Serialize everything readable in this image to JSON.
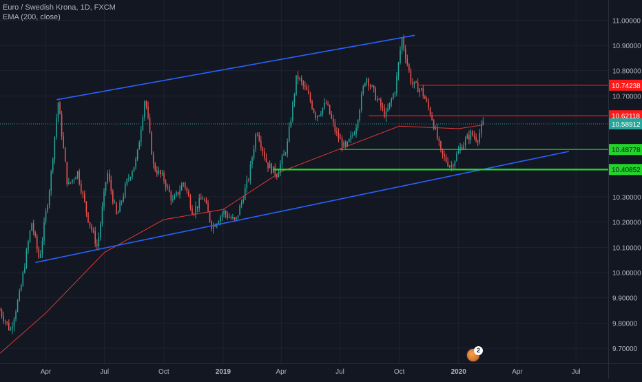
{
  "legend": {
    "symbol": "Euro / Swedish Krona, 1D, FXCM",
    "indicator": "EMA (200, close)"
  },
  "colors": {
    "background": "#131722",
    "up_candle": "#26a69a",
    "down_candle": "#ef5350",
    "trendline": "#2962ff",
    "ema": "#e53935",
    "resistance": "#ff1a1a",
    "support": "#22d32b",
    "last_price": "#26a69a",
    "axis_text": "#b2b5be"
  },
  "chart_data": {
    "type": "candlestick",
    "title": "Euro / Swedish Krona, 1D, FXCM",
    "indicator": "EMA (200, close)",
    "ylim": [
      9.64,
      11.08
    ],
    "x_range": [
      "2018-01-20",
      "2020-08-20"
    ],
    "x_ticks": [
      {
        "label": "Apr",
        "date": "2018-04-01"
      },
      {
        "label": "Jul",
        "date": "2018-07-01"
      },
      {
        "label": "Oct",
        "date": "2018-10-01"
      },
      {
        "label": "2019",
        "date": "2019-01-01"
      },
      {
        "label": "Apr",
        "date": "2019-04-01"
      },
      {
        "label": "Jul",
        "date": "2019-07-01"
      },
      {
        "label": "Oct",
        "date": "2019-10-01"
      },
      {
        "label": "2020",
        "date": "2020-01-01"
      },
      {
        "label": "Apr",
        "date": "2020-04-01"
      },
      {
        "label": "Jul",
        "date": "2020-07-01"
      }
    ],
    "y_ticks": [
      {
        "label": "11.00000",
        "value": 11.0
      },
      {
        "label": "10.90000",
        "value": 10.9
      },
      {
        "label": "10.80000",
        "value": 10.8
      },
      {
        "label": "10.70000",
        "value": 10.7
      },
      {
        "label": "10.30000",
        "value": 10.3
      },
      {
        "label": "10.20000",
        "value": 10.2
      },
      {
        "label": "10.10000",
        "value": 10.1
      },
      {
        "label": "10.00000",
        "value": 10.0
      },
      {
        "label": "9.90000",
        "value": 9.9
      },
      {
        "label": "9.80000",
        "value": 9.8
      },
      {
        "label": "9.70000",
        "value": 9.7
      }
    ],
    "price_anchors": [
      [
        "2018-01-20",
        9.85
      ],
      [
        "2018-02-05",
        9.77
      ],
      [
        "2018-02-20",
        9.92
      ],
      [
        "2018-03-10",
        10.2
      ],
      [
        "2018-03-22",
        10.05
      ],
      [
        "2018-04-08",
        10.36
      ],
      [
        "2018-04-20",
        10.68
      ],
      [
        "2018-05-05",
        10.34
      ],
      [
        "2018-05-20",
        10.4
      ],
      [
        "2018-06-05",
        10.22
      ],
      [
        "2018-06-20",
        10.1
      ],
      [
        "2018-07-05",
        10.4
      ],
      [
        "2018-07-20",
        10.22
      ],
      [
        "2018-08-05",
        10.36
      ],
      [
        "2018-08-20",
        10.45
      ],
      [
        "2018-09-02",
        10.7
      ],
      [
        "2018-09-15",
        10.42
      ],
      [
        "2018-10-01",
        10.37
      ],
      [
        "2018-10-15",
        10.28
      ],
      [
        "2018-11-01",
        10.36
      ],
      [
        "2018-11-15",
        10.24
      ],
      [
        "2018-12-01",
        10.3
      ],
      [
        "2018-12-15",
        10.18
      ],
      [
        "2019-01-01",
        10.24
      ],
      [
        "2019-01-20",
        10.2
      ],
      [
        "2019-02-10",
        10.38
      ],
      [
        "2019-02-22",
        10.57
      ],
      [
        "2019-03-10",
        10.43
      ],
      [
        "2019-03-25",
        10.39
      ],
      [
        "2019-04-10",
        10.5
      ],
      [
        "2019-04-25",
        10.78
      ],
      [
        "2019-05-10",
        10.72
      ],
      [
        "2019-05-25",
        10.62
      ],
      [
        "2019-06-10",
        10.67
      ],
      [
        "2019-06-25",
        10.55
      ],
      [
        "2019-07-10",
        10.49
      ],
      [
        "2019-07-25",
        10.57
      ],
      [
        "2019-08-10",
        10.78
      ],
      [
        "2019-08-25",
        10.7
      ],
      [
        "2019-09-10",
        10.62
      ],
      [
        "2019-09-25",
        10.73
      ],
      [
        "2019-10-05",
        10.93
      ],
      [
        "2019-10-20",
        10.75
      ],
      [
        "2019-11-05",
        10.72
      ],
      [
        "2019-11-20",
        10.62
      ],
      [
        "2019-12-05",
        10.47
      ],
      [
        "2019-12-20",
        10.42
      ],
      [
        "2020-01-05",
        10.5
      ],
      [
        "2020-01-20",
        10.55
      ],
      [
        "2020-01-30",
        10.53
      ],
      [
        "2020-02-08",
        10.59
      ]
    ],
    "candle_count": 275,
    "ema_200": [
      [
        "2018-01-20",
        9.68
      ],
      [
        "2018-04-01",
        9.84
      ],
      [
        "2018-07-01",
        10.08
      ],
      [
        "2018-10-01",
        10.21
      ],
      [
        "2019-01-01",
        10.25
      ],
      [
        "2019-04-01",
        10.4
      ],
      [
        "2019-07-01",
        10.49
      ],
      [
        "2019-10-01",
        10.58
      ],
      [
        "2020-01-01",
        10.57
      ],
      [
        "2020-02-08",
        10.585
      ]
    ],
    "trendlines": [
      {
        "name": "upper-channel",
        "from": [
          "2018-04-18",
          10.685
        ],
        "to": [
          "2019-10-25",
          10.94
        ]
      },
      {
        "name": "lower-channel",
        "from": [
          "2018-03-16",
          10.04
        ],
        "to": [
          "2020-06-20",
          10.48
        ]
      }
    ],
    "levels": [
      {
        "label": "10.74238",
        "value": 10.74238,
        "from": "2019-11-01",
        "kind": "resistance"
      },
      {
        "label": "10.62118",
        "value": 10.62118,
        "from": "2019-08-15",
        "kind": "resistance"
      },
      {
        "label": "10.58912",
        "value": 10.58912,
        "from": "2018-01-20",
        "kind": "last_price"
      },
      {
        "label": "10.48778",
        "value": 10.48778,
        "from": "2019-07-01",
        "kind": "support"
      },
      {
        "label": "10.40852",
        "value": 10.40852,
        "from": "2019-03-20",
        "kind": "support"
      }
    ],
    "notification_count": "2"
  }
}
